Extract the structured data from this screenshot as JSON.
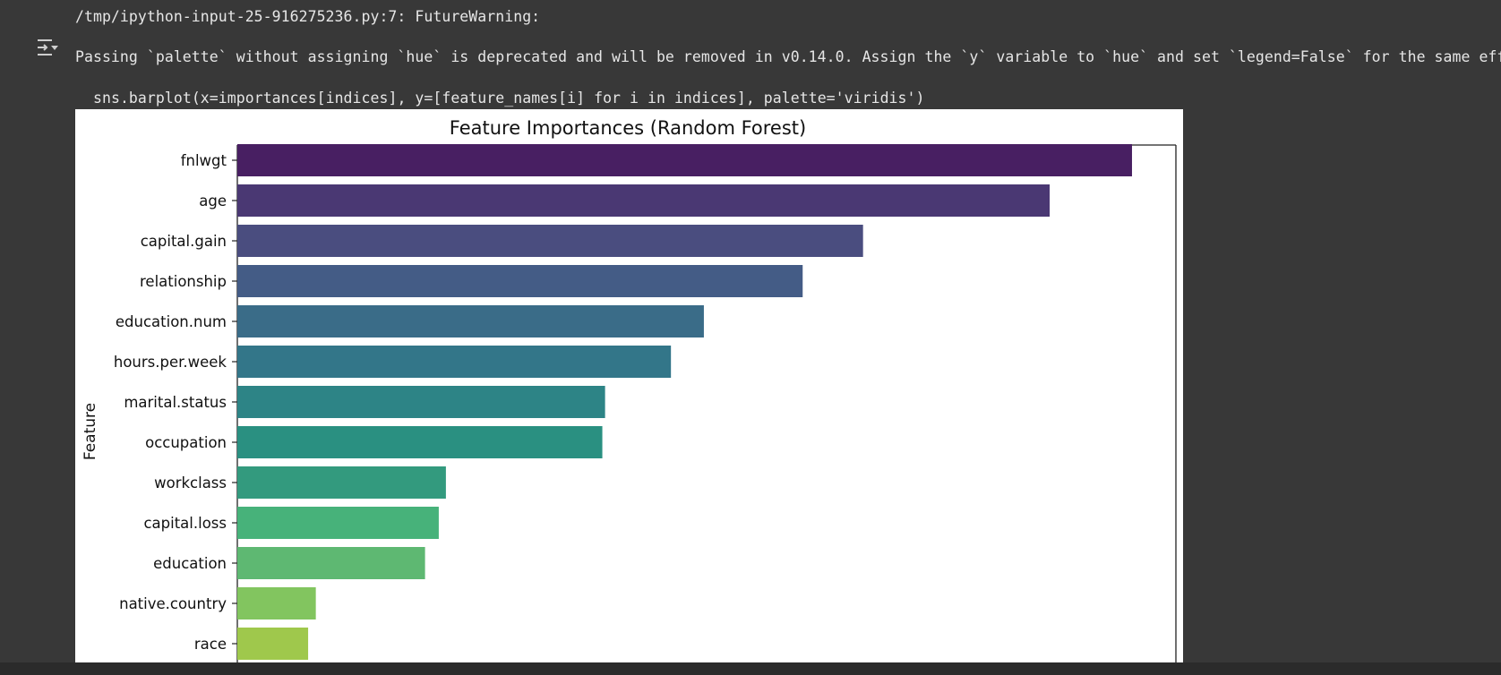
{
  "console": {
    "warning_line": "/tmp/ipython-input-25-916275236.py:7: FutureWarning:",
    "message_line": "Passing `palette` without assigning `hue` is deprecated and will be removed in v0.14.0. Assign the `y` variable to `hue` and set `legend=False` for the same effect.",
    "code_line": "sns.barplot(x=importances[indices], y=[feature_names[i] for i in indices], palette='viridis')"
  },
  "icons": {
    "output_toggle": "output-toggle-icon"
  },
  "colors": {
    "background": "#383838",
    "text": "#e6e6e6"
  },
  "chart_data": {
    "type": "bar",
    "orientation": "horizontal",
    "title": "Feature Importances (Random Forest)",
    "ylabel": "Feature",
    "xlabel": "",
    "categories": [
      "fnlwgt",
      "age",
      "capital.gain",
      "relationship",
      "education.num",
      "hours.per.week",
      "marital.status",
      "occupation",
      "workclass",
      "capital.loss",
      "education",
      "native.country",
      "race"
    ],
    "values": [
      0.163,
      0.148,
      0.114,
      0.103,
      0.085,
      0.079,
      0.067,
      0.0665,
      0.038,
      0.0367,
      0.0342,
      0.0143,
      0.0129
    ],
    "xlim": [
      0,
      0.171
    ],
    "colors": [
      "#481f62",
      "#4a3873",
      "#4a4d7f",
      "#445c86",
      "#3a6c88",
      "#337689",
      "#2d8486",
      "#2a9081",
      "#339a7e",
      "#47b27a",
      "#5eb872",
      "#82c55f",
      "#9fc84c"
    ],
    "palette": "viridis",
    "grid": false
  }
}
